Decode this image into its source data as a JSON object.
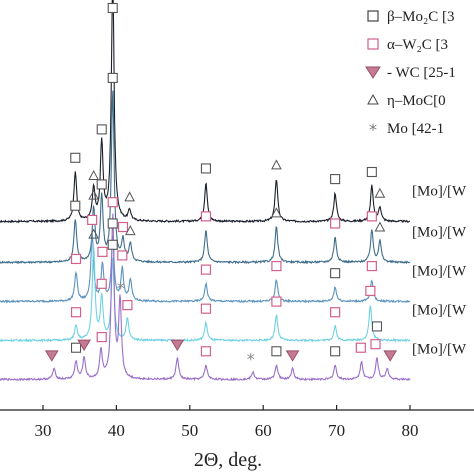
{
  "chart_data": {
    "type": "line",
    "xlabel": "2Θ, deg.",
    "ylabel": "",
    "xlim": [
      24,
      80
    ],
    "x_ticks": [
      "30",
      "40",
      "50",
      "60",
      "70",
      "80"
    ],
    "x_tick_values": [
      30,
      40,
      50,
      60,
      70,
      80
    ],
    "grid": false,
    "legend_placement": "top-right",
    "legend": [
      {
        "marker": "square",
        "color": "#444444",
        "label": "β–Mo₂C [3"
      },
      {
        "marker": "square",
        "color": "#d2608e",
        "label": "α–W₂C [3"
      },
      {
        "marker": "triangle-down",
        "color": "#b0607a",
        "label": "- WC [25-1"
      },
      {
        "marker": "triangle-up-open",
        "color": "#444444",
        "label": "η–MoC[0"
      },
      {
        "marker": "asterisk",
        "color": "#777777",
        "label": "Mo [42-1"
      }
    ],
    "series": [
      {
        "label": "[Mo]/[W",
        "color": "#1a1f2a",
        "baseline": 5.0,
        "peaks": [
          [
            34.4,
            1.4
          ],
          [
            36.9,
            0.9
          ],
          [
            38.0,
            2.2
          ],
          [
            39.5,
            6.8
          ],
          [
            41.8,
            0.3
          ],
          [
            52.2,
            1.1
          ],
          [
            61.8,
            1.2
          ],
          [
            69.8,
            0.8
          ],
          [
            74.8,
            1.0
          ],
          [
            75.9,
            0.4
          ]
        ],
        "markers": [
          {
            "x": 34.4,
            "marker": "square-dark"
          },
          {
            "x": 36.9,
            "marker": "triangle-open"
          },
          {
            "x": 38.0,
            "marker": "square-dark"
          },
          {
            "x": 39.5,
            "marker": "square-dark"
          },
          {
            "x": 41.8,
            "marker": "triangle-open"
          },
          {
            "x": 52.2,
            "marker": "square-dark"
          },
          {
            "x": 61.8,
            "marker": "triangle-open"
          },
          {
            "x": 69.8,
            "marker": "square-dark"
          },
          {
            "x": 74.8,
            "marker": "square-dark"
          },
          {
            "x": 75.9,
            "marker": "triangle-open"
          }
        ]
      },
      {
        "label": "[Mo]/[W",
        "color": "#3f6e8c",
        "baseline": 3.85,
        "peaks": [
          [
            34.4,
            1.2
          ],
          [
            36.9,
            1.5
          ],
          [
            38.0,
            1.8
          ],
          [
            39.5,
            4.8
          ],
          [
            40.9,
            0.6
          ],
          [
            41.9,
            0.5
          ],
          [
            52.2,
            0.9
          ],
          [
            61.8,
            1.0
          ],
          [
            69.8,
            0.7
          ],
          [
            74.8,
            0.9
          ],
          [
            75.9,
            0.6
          ]
        ],
        "markers": [
          {
            "x": 34.4,
            "marker": "square-dark"
          },
          {
            "x": 36.9,
            "marker": "triangle-open"
          },
          {
            "x": 38.0,
            "marker": "square-dark"
          },
          {
            "x": 39.5,
            "marker": "square-dark"
          },
          {
            "x": 40.9,
            "marker": "square-pink"
          },
          {
            "x": 41.9,
            "marker": "triangle-open"
          },
          {
            "x": 52.2,
            "marker": "square-pink"
          },
          {
            "x": 61.8,
            "marker": "triangle-open"
          },
          {
            "x": 69.8,
            "marker": "square-pink"
          },
          {
            "x": 74.8,
            "marker": "square-pink"
          },
          {
            "x": 75.9,
            "marker": "triangle-open"
          }
        ]
      },
      {
        "label": "[Mo]/[W",
        "color": "#5a93bf",
        "baseline": 2.75,
        "peaks": [
          [
            34.5,
            0.8
          ],
          [
            36.7,
            1.9
          ],
          [
            38.1,
            1.0
          ],
          [
            39.5,
            1.8
          ],
          [
            40.8,
            0.9
          ],
          [
            41.9,
            0.6
          ],
          [
            52.2,
            0.5
          ],
          [
            61.8,
            0.6
          ],
          [
            69.8,
            0.4
          ],
          [
            74.8,
            0.6
          ]
        ],
        "markers": [
          {
            "x": 34.5,
            "marker": "square-pink"
          },
          {
            "x": 36.7,
            "marker": "square-pink"
          },
          {
            "x": 38.1,
            "marker": "square-pink"
          },
          {
            "x": 39.5,
            "marker": "square-dark"
          },
          {
            "x": 40.8,
            "marker": "square-pink"
          },
          {
            "x": 52.2,
            "marker": "square-pink"
          },
          {
            "x": 61.8,
            "marker": "square-pink"
          },
          {
            "x": 69.8,
            "marker": "square-dark"
          },
          {
            "x": 74.8,
            "marker": "square-pink"
          }
        ]
      },
      {
        "label": "[Mo]/[W",
        "color": "#6fd2e4",
        "baseline": 1.65,
        "peaks": [
          [
            34.5,
            0.4
          ],
          [
            36.9,
            2.6
          ],
          [
            38.0,
            1.2
          ],
          [
            39.5,
            2.3
          ],
          [
            41.5,
            0.6
          ],
          [
            52.2,
            0.5
          ],
          [
            61.8,
            0.7
          ],
          [
            69.8,
            0.4
          ],
          [
            74.6,
            1.0
          ]
        ],
        "markers": [
          {
            "x": 34.5,
            "marker": "square-pink"
          },
          {
            "x": 36.9,
            "marker": "triangle-open"
          },
          {
            "x": 38.0,
            "marker": "square-pink"
          },
          {
            "x": 39.5,
            "marker": "square-dark"
          },
          {
            "x": 41.5,
            "marker": "square-pink"
          },
          {
            "x": 52.2,
            "marker": "square-pink"
          },
          {
            "x": 61.8,
            "marker": "square-pink"
          },
          {
            "x": 69.8,
            "marker": "square-pink"
          },
          {
            "x": 74.6,
            "marker": "square-pink"
          },
          {
            "x": 75.5,
            "marker": "square-dark"
          }
        ]
      },
      {
        "label": "[Mo]/[W",
        "color": "#9a70c8",
        "baseline": 0.55,
        "peaks": [
          [
            31.5,
            0.3
          ],
          [
            34.5,
            0.5
          ],
          [
            35.6,
            0.6
          ],
          [
            37.9,
            0.8
          ],
          [
            39.5,
            4.6
          ],
          [
            40.5,
            2.2
          ],
          [
            48.3,
            0.6
          ],
          [
            52.2,
            0.4
          ],
          [
            58.6,
            0.2
          ],
          [
            61.8,
            0.4
          ],
          [
            64.0,
            0.3
          ],
          [
            69.8,
            0.4
          ],
          [
            73.4,
            0.5
          ],
          [
            75.5,
            0.6
          ],
          [
            76.9,
            0.3
          ]
        ],
        "markers": [
          {
            "x": 31.2,
            "marker": "triangle-down"
          },
          {
            "x": 34.5,
            "marker": "square-dark"
          },
          {
            "x": 35.6,
            "marker": "triangle-down"
          },
          {
            "x": 38.0,
            "marker": "square-pink"
          },
          {
            "x": 39.5,
            "marker": "square-pink"
          },
          {
            "x": 40.6,
            "marker": "asterisk"
          },
          {
            "x": 48.3,
            "marker": "triangle-down"
          },
          {
            "x": 52.2,
            "marker": "square-pink"
          },
          {
            "x": 58.3,
            "marker": "asterisk"
          },
          {
            "x": 61.8,
            "marker": "square-dark"
          },
          {
            "x": 64.0,
            "marker": "triangle-down"
          },
          {
            "x": 69.8,
            "marker": "square-dark"
          },
          {
            "x": 73.3,
            "marker": "square-pink"
          },
          {
            "x": 75.3,
            "marker": "square-pink"
          },
          {
            "x": 77.3,
            "marker": "triangle-down"
          }
        ]
      }
    ]
  }
}
